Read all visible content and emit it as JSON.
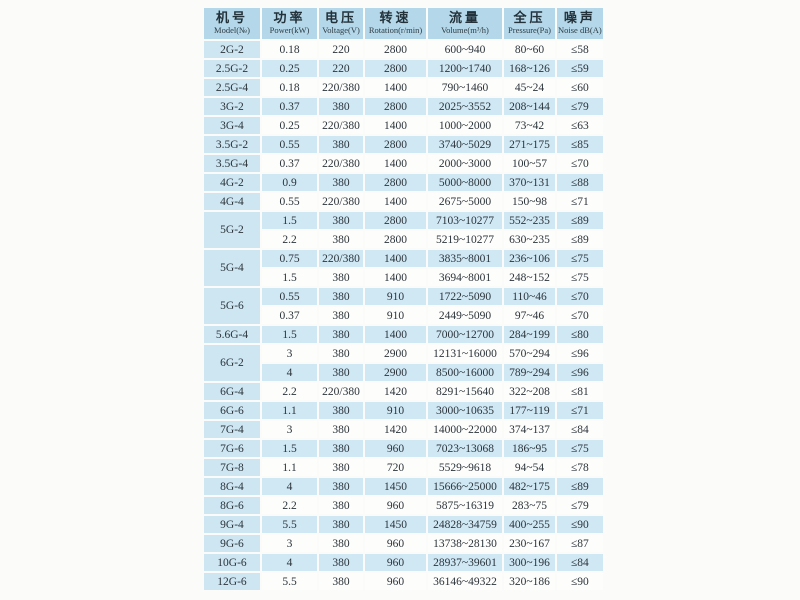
{
  "page": {
    "background": "#fbfbf9"
  },
  "table": {
    "colors": {
      "header_bg": "#b4d8e9",
      "model_cell_bg": "#cde6f2",
      "row_blue_bg": "#cfe8f4",
      "row_white_bg": "#fdfdfb",
      "text": "#2c343b"
    },
    "columns": [
      {
        "zh": "机号",
        "en": "Model(№)"
      },
      {
        "zh": "功率",
        "en": "Power(kW)"
      },
      {
        "zh": "电压",
        "en": "Voltage(V)"
      },
      {
        "zh": "转速",
        "en": "Rotation(r/min)"
      },
      {
        "zh": "流量",
        "en": "Volume(m³/h)"
      },
      {
        "zh": "全压",
        "en": "Pressure(Pa)"
      },
      {
        "zh": "噪声",
        "en": "Noise dB(A)"
      }
    ],
    "rows": [
      {
        "model": "2G-2",
        "rowspan": 1,
        "power": "0.18",
        "voltage": "220",
        "rotation": "2800",
        "volume": "600~940",
        "pressure": "80~60",
        "noise": "≤58"
      },
      {
        "model": "2.5G-2",
        "rowspan": 1,
        "power": "0.25",
        "voltage": "220",
        "rotation": "2800",
        "volume": "1200~1740",
        "pressure": "168~126",
        "noise": "≤59"
      },
      {
        "model": "2.5G-4",
        "rowspan": 1,
        "power": "0.18",
        "voltage": "220/380",
        "rotation": "1400",
        "volume": "790~1460",
        "pressure": "45~24",
        "noise": "≤60"
      },
      {
        "model": "3G-2",
        "rowspan": 1,
        "power": "0.37",
        "voltage": "380",
        "rotation": "2800",
        "volume": "2025~3552",
        "pressure": "208~144",
        "noise": "≤79"
      },
      {
        "model": "3G-4",
        "rowspan": 1,
        "power": "0.25",
        "voltage": "220/380",
        "rotation": "1400",
        "volume": "1000~2000",
        "pressure": "73~42",
        "noise": "≤63"
      },
      {
        "model": "3.5G-2",
        "rowspan": 1,
        "power": "0.55",
        "voltage": "380",
        "rotation": "2800",
        "volume": "3740~5029",
        "pressure": "271~175",
        "noise": "≤85"
      },
      {
        "model": "3.5G-4",
        "rowspan": 1,
        "power": "0.37",
        "voltage": "220/380",
        "rotation": "1400",
        "volume": "2000~3000",
        "pressure": "100~57",
        "noise": "≤70"
      },
      {
        "model": "4G-2",
        "rowspan": 1,
        "power": "0.9",
        "voltage": "380",
        "rotation": "2800",
        "volume": "5000~8000",
        "pressure": "370~131",
        "noise": "≤88"
      },
      {
        "model": "4G-4",
        "rowspan": 1,
        "power": "0.55",
        "voltage": "220/380",
        "rotation": "1400",
        "volume": "2675~5000",
        "pressure": "150~98",
        "noise": "≤71"
      },
      {
        "model": "5G-2",
        "rowspan": 2,
        "power": "1.5",
        "voltage": "380",
        "rotation": "2800",
        "volume": "7103~10277",
        "pressure": "552~235",
        "noise": "≤89"
      },
      {
        "power": "2.2",
        "voltage": "380",
        "rotation": "2800",
        "volume": "5219~10277",
        "pressure": "630~235",
        "noise": "≤89"
      },
      {
        "model": "5G-4",
        "rowspan": 2,
        "power": "0.75",
        "voltage": "220/380",
        "rotation": "1400",
        "volume": "3835~8001",
        "pressure": "236~106",
        "noise": "≤75"
      },
      {
        "power": "1.5",
        "voltage": "380",
        "rotation": "1400",
        "volume": "3694~8001",
        "pressure": "248~152",
        "noise": "≤75"
      },
      {
        "model": "5G-6",
        "rowspan": 2,
        "power": "0.55",
        "voltage": "380",
        "rotation": "910",
        "volume": "1722~5090",
        "pressure": "110~46",
        "noise": "≤70"
      },
      {
        "power": "0.37",
        "voltage": "380",
        "rotation": "910",
        "volume": "2449~5090",
        "pressure": "97~46",
        "noise": "≤70"
      },
      {
        "model": "5.6G-4",
        "rowspan": 1,
        "power": "1.5",
        "voltage": "380",
        "rotation": "1400",
        "volume": "7000~12700",
        "pressure": "284~199",
        "noise": "≤80"
      },
      {
        "model": "6G-2",
        "rowspan": 2,
        "power": "3",
        "voltage": "380",
        "rotation": "2900",
        "volume": "12131~16000",
        "pressure": "570~294",
        "noise": "≤96"
      },
      {
        "power": "4",
        "voltage": "380",
        "rotation": "2900",
        "volume": "8500~16000",
        "pressure": "789~294",
        "noise": "≤96"
      },
      {
        "model": "6G-4",
        "rowspan": 1,
        "power": "2.2",
        "voltage": "220/380",
        "rotation": "1420",
        "volume": "8291~15640",
        "pressure": "322~208",
        "noise": "≤81"
      },
      {
        "model": "6G-6",
        "rowspan": 1,
        "power": "1.1",
        "voltage": "380",
        "rotation": "910",
        "volume": "3000~10635",
        "pressure": "177~119",
        "noise": "≤71"
      },
      {
        "model": "7G-4",
        "rowspan": 1,
        "power": "3",
        "voltage": "380",
        "rotation": "1420",
        "volume": "14000~22000",
        "pressure": "374~137",
        "noise": "≤84"
      },
      {
        "model": "7G-6",
        "rowspan": 1,
        "power": "1.5",
        "voltage": "380",
        "rotation": "960",
        "volume": "7023~13068",
        "pressure": "186~95",
        "noise": "≤75"
      },
      {
        "model": "7G-8",
        "rowspan": 1,
        "power": "1.1",
        "voltage": "380",
        "rotation": "720",
        "volume": "5529~9618",
        "pressure": "94~54",
        "noise": "≤78"
      },
      {
        "model": "8G-4",
        "rowspan": 1,
        "power": "4",
        "voltage": "380",
        "rotation": "1450",
        "volume": "15666~25000",
        "pressure": "482~175",
        "noise": "≤89"
      },
      {
        "model": "8G-6",
        "rowspan": 1,
        "power": "2.2",
        "voltage": "380",
        "rotation": "960",
        "volume": "5875~16319",
        "pressure": "283~75",
        "noise": "≤79"
      },
      {
        "model": "9G-4",
        "rowspan": 1,
        "power": "5.5",
        "voltage": "380",
        "rotation": "1450",
        "volume": "24828~34759",
        "pressure": "400~255",
        "noise": "≤90"
      },
      {
        "model": "9G-6",
        "rowspan": 1,
        "power": "3",
        "voltage": "380",
        "rotation": "960",
        "volume": "13738~28130",
        "pressure": "230~167",
        "noise": "≤87"
      },
      {
        "model": "10G-6",
        "rowspan": 1,
        "power": "4",
        "voltage": "380",
        "rotation": "960",
        "volume": "28937~39601",
        "pressure": "300~196",
        "noise": "≤84"
      },
      {
        "model": "12G-6",
        "rowspan": 1,
        "power": "5.5",
        "voltage": "380",
        "rotation": "960",
        "volume": "36146~49322",
        "pressure": "320~186",
        "noise": "≤90"
      }
    ]
  }
}
